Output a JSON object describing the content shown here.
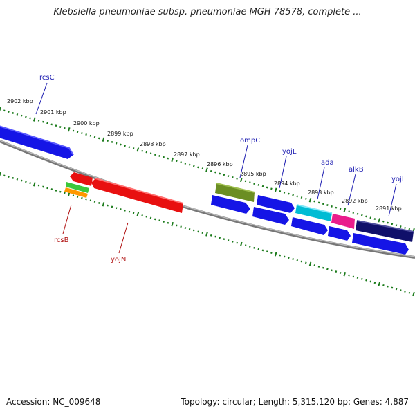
{
  "title": "Klebsiella pneumoniae subsp. pneumoniae MGH 78578, complete ...",
  "footer": {
    "accession": "Accession: NC_009648",
    "summary": "Topology: circular; Length: 5,315,120 bp; Genes: 4,887"
  },
  "ticks": [
    "2902 kbp",
    "2901 kbp",
    "2900 kbp",
    "2899 kbp",
    "2898 kbp",
    "2897 kbp",
    "2896 kbp",
    "2895 kbp",
    "2894 kbp",
    "2893 kbp",
    "2892 kbp",
    "2891 kbp"
  ],
  "colors": {
    "forward_gene": "#1010e0",
    "reverse_gene": "#e81010",
    "backbone": "#7a7a7a",
    "tick": "#1a7a1a",
    "label_forward": "#1a1ab0",
    "label_reverse": "#b01010"
  },
  "labels_forward": [
    "rcsC",
    "ompC",
    "yojL",
    "ada",
    "alkB",
    "yojI"
  ],
  "labels_reverse": [
    "rcsB",
    "yojN"
  ]
}
